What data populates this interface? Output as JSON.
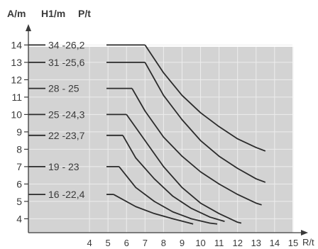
{
  "chart_data": {
    "type": "line",
    "axis_headers": {
      "a": "A/m",
      "h": "H1/m",
      "p": "P/t"
    },
    "xlabel": "R/t",
    "ylabel": "A/m",
    "x_ticks": [
      4,
      5,
      6,
      7,
      8,
      9,
      10,
      11,
      12,
      13,
      14,
      15
    ],
    "y_ticks": [
      4,
      5,
      6,
      7,
      8,
      9,
      10,
      11,
      12,
      13,
      14
    ],
    "xlim": [
      0.7,
      15.5
    ],
    "ylim": [
      3.2,
      15.2
    ],
    "grid": true,
    "series": [
      {
        "label": "34 -26,2",
        "a": 14,
        "points": [
          [
            7,
            14
          ],
          [
            8,
            12.4
          ],
          [
            9,
            11.1
          ],
          [
            10,
            10.1
          ],
          [
            11,
            9.3
          ],
          [
            12,
            8.6
          ],
          [
            13,
            8.1
          ],
          [
            13.5,
            7.9
          ]
        ]
      },
      {
        "label": "31 -25,6",
        "a": 13,
        "points": [
          [
            7,
            13
          ],
          [
            8,
            11.1
          ],
          [
            9,
            9.7
          ],
          [
            10,
            8.5
          ],
          [
            11,
            7.6
          ],
          [
            12,
            6.9
          ],
          [
            13,
            6.3
          ],
          [
            13.5,
            6.1
          ]
        ]
      },
      {
        "label": "28 - 25",
        "a": 11.5,
        "points": [
          [
            6.3,
            11.5
          ],
          [
            7,
            10.2
          ],
          [
            8,
            8.7
          ],
          [
            9,
            7.6
          ],
          [
            10,
            6.7
          ],
          [
            11,
            6
          ],
          [
            12,
            5.4
          ],
          [
            13,
            4.9
          ],
          [
            13.3,
            4.8
          ]
        ]
      },
      {
        "label": "25 -24,3",
        "a": 10,
        "points": [
          [
            6,
            10
          ],
          [
            7,
            8.5
          ],
          [
            8,
            7
          ],
          [
            9,
            5.8
          ],
          [
            10,
            4.9
          ],
          [
            11,
            4.3
          ],
          [
            12,
            3.8
          ],
          [
            12.2,
            3.75
          ]
        ]
      },
      {
        "label": "22 -23,7",
        "a": 8.8,
        "points": [
          [
            5.8,
            8.8
          ],
          [
            6.5,
            7.5
          ],
          [
            7.5,
            6.3
          ],
          [
            8.5,
            5.3
          ],
          [
            9.5,
            4.6
          ],
          [
            10.5,
            4.1
          ],
          [
            11.3,
            3.85
          ]
        ]
      },
      {
        "label": "19 - 23",
        "a": 7,
        "points": [
          [
            5.6,
            7
          ],
          [
            6.5,
            5.8
          ],
          [
            7.5,
            5
          ],
          [
            8.5,
            4.4
          ],
          [
            9.5,
            4
          ],
          [
            10.5,
            3.75
          ],
          [
            10.9,
            3.7
          ]
        ]
      },
      {
        "label": "16 -22,4",
        "a": 5.4,
        "points": [
          [
            5.3,
            5.4
          ],
          [
            6.5,
            4.7
          ],
          [
            7.5,
            4.3
          ],
          [
            8.5,
            4
          ],
          [
            9.6,
            3.7
          ]
        ]
      }
    ]
  }
}
